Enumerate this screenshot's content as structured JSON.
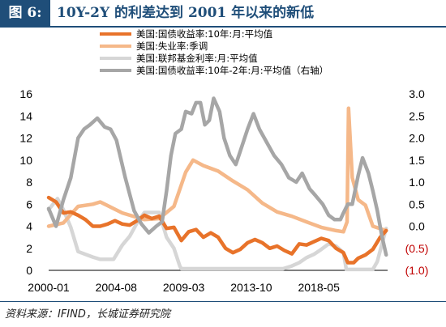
{
  "header": {
    "figure_label": "图 6:",
    "title": "10Y-2Y 的利差达到 2001 年以来的新低"
  },
  "footer": {
    "source": "资料来源：IFIND，长城证券研究院"
  },
  "chart_data": {
    "type": "line",
    "x_ticks": [
      "2000-01",
      "2004-08",
      "2009-03",
      "2013-10",
      "2018-05"
    ],
    "y_left_ticks": [
      "0",
      "2",
      "4",
      "6",
      "8",
      "10",
      "12",
      "14",
      "16"
    ],
    "y_left_lim": [
      0,
      16
    ],
    "y_right_ticks": [
      "3.0",
      "2.5",
      "2.0",
      "1.5",
      "1.0",
      "0.5",
      "0.0",
      "(0.5)",
      "(1.0)"
    ],
    "y_right_lim": [
      -1.0,
      3.0
    ],
    "x_range": [
      "2000-01",
      "2023-01"
    ],
    "legend_position": "top-center",
    "colors": {
      "treasury10y": "#e8732a",
      "unemployment": "#f5b889",
      "fedfunds": "#d6d6d6",
      "spread": "#a6a6a6",
      "negative_tick": "#c00000"
    },
    "series": [
      {
        "name": "美国:国债收益率:10年:月:平均值",
        "axis": "left",
        "t": [
          2000.0,
          2000.5,
          2001.0,
          2001.5,
          2002.0,
          2002.5,
          2003.0,
          2003.5,
          2004.0,
          2004.5,
          2005.0,
          2005.5,
          2006.0,
          2006.5,
          2007.0,
          2007.5,
          2008.0,
          2008.5,
          2009.0,
          2009.5,
          2010.0,
          2010.5,
          2011.0,
          2011.5,
          2012.0,
          2012.5,
          2013.0,
          2013.5,
          2014.0,
          2014.5,
          2015.0,
          2015.5,
          2016.0,
          2016.5,
          2017.0,
          2017.5,
          2018.0,
          2018.5,
          2019.0,
          2019.5,
          2020.0,
          2020.3,
          2020.7,
          2021.0,
          2021.5,
          2022.0,
          2022.5,
          2022.9
        ],
        "values": [
          6.6,
          6.2,
          5.2,
          5.3,
          5.0,
          4.6,
          4.0,
          4.0,
          4.2,
          4.5,
          4.2,
          4.1,
          4.5,
          5.0,
          4.7,
          4.9,
          3.8,
          3.9,
          2.7,
          3.5,
          3.7,
          3.0,
          3.4,
          3.0,
          2.0,
          1.6,
          1.9,
          2.5,
          2.8,
          2.5,
          2.0,
          2.2,
          1.8,
          1.5,
          2.4,
          2.3,
          2.6,
          2.9,
          2.7,
          2.0,
          1.6,
          0.7,
          0.7,
          1.1,
          1.4,
          1.9,
          3.0,
          3.6
        ]
      },
      {
        "name": "美国:失业率:季调",
        "axis": "left",
        "t": [
          2000.0,
          2001.0,
          2002.0,
          2003.0,
          2003.5,
          2005.0,
          2006.5,
          2007.5,
          2008.5,
          2009.3,
          2009.8,
          2010.5,
          2011.5,
          2012.5,
          2013.5,
          2014.5,
          2015.5,
          2016.5,
          2017.5,
          2018.5,
          2019.5,
          2020.0,
          2020.25,
          2020.35,
          2020.6,
          2021.0,
          2021.5,
          2022.0,
          2022.9
        ],
        "values": [
          4.0,
          4.3,
          5.8,
          6.0,
          6.2,
          5.2,
          4.6,
          4.7,
          5.8,
          8.9,
          10.0,
          9.5,
          9.0,
          8.1,
          7.3,
          6.1,
          5.3,
          4.9,
          4.4,
          3.9,
          3.6,
          3.5,
          4.4,
          14.7,
          8.4,
          6.4,
          5.9,
          4.0,
          3.6
        ]
      },
      {
        "name": "美国:联邦基金利率:月:平均值",
        "axis": "left",
        "t": [
          2000.0,
          2000.6,
          2001.0,
          2001.5,
          2002.0,
          2003.0,
          2003.5,
          2004.4,
          2005.0,
          2005.5,
          2006.0,
          2006.5,
          2007.5,
          2008.0,
          2008.5,
          2008.9,
          2009.0,
          2015.9,
          2016.5,
          2017.0,
          2017.5,
          2018.0,
          2018.5,
          2019.0,
          2019.5,
          2020.0,
          2020.2,
          2022.0,
          2022.3,
          2022.6,
          2022.9
        ],
        "values": [
          5.5,
          6.5,
          5.5,
          3.9,
          1.7,
          1.2,
          1.0,
          1.0,
          2.3,
          3.1,
          4.3,
          5.25,
          5.25,
          3.0,
          2.0,
          0.4,
          0.15,
          0.15,
          0.4,
          0.7,
          1.15,
          1.45,
          1.9,
          2.4,
          2.2,
          1.6,
          0.08,
          0.08,
          0.8,
          2.3,
          3.8
        ]
      },
      {
        "name": "美国:国债收益率:10年-2年:月:平均值（右轴）",
        "axis": "right",
        "t": [
          2000.0,
          2000.5,
          2001.0,
          2001.5,
          2002.0,
          2002.4,
          2002.8,
          2003.3,
          2003.8,
          2004.2,
          2004.6,
          2005.2,
          2005.8,
          2006.3,
          2006.8,
          2007.3,
          2007.7,
          2008.0,
          2008.3,
          2008.6,
          2009.0,
          2009.3,
          2009.7,
          2010.0,
          2010.3,
          2010.6,
          2010.9,
          2011.2,
          2011.6,
          2011.9,
          2012.3,
          2012.7,
          2013.0,
          2013.5,
          2013.9,
          2014.3,
          2014.8,
          2015.3,
          2015.8,
          2016.3,
          2016.8,
          2017.2,
          2017.7,
          2018.1,
          2018.6,
          2019.0,
          2019.4,
          2019.8,
          2020.0,
          2020.3,
          2020.6,
          2021.0,
          2021.3,
          2021.7,
          2022.0,
          2022.3,
          2022.6,
          2022.9
        ],
        "values": [
          0.4,
          0.0,
          0.6,
          1.1,
          2.0,
          2.2,
          2.3,
          2.45,
          2.25,
          2.2,
          1.95,
          1.1,
          0.35,
          0.05,
          -0.15,
          0.0,
          0.1,
          0.8,
          1.6,
          2.1,
          2.2,
          2.6,
          2.55,
          2.8,
          2.8,
          2.3,
          2.4,
          2.9,
          2.6,
          2.0,
          1.6,
          1.4,
          1.7,
          2.2,
          2.55,
          2.2,
          1.9,
          1.6,
          1.4,
          1.1,
          1.0,
          1.2,
          0.85,
          0.7,
          0.5,
          0.25,
          0.15,
          0.15,
          0.3,
          0.5,
          0.5,
          1.15,
          1.55,
          1.2,
          0.8,
          0.35,
          -0.2,
          -0.65
        ]
      }
    ]
  }
}
